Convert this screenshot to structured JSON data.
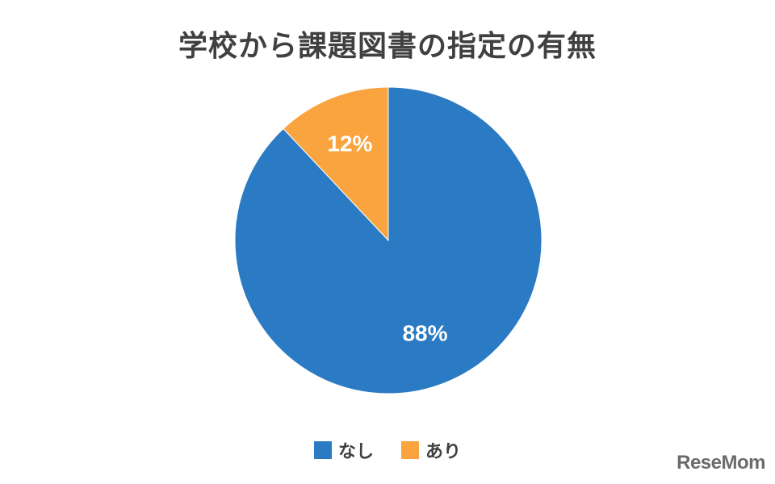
{
  "chart_data": {
    "type": "pie",
    "title": "学校から課題図書の指定の有無",
    "slices": [
      {
        "label": "なし",
        "value": 88,
        "value_label": "88%",
        "color": "#2A7BC4"
      },
      {
        "label": "あり",
        "value": 12,
        "value_label": "12%",
        "color": "#F9A43F"
      }
    ],
    "start_angle_deg": 0,
    "direction": "clockwise",
    "legend_position": "bottom"
  },
  "watermark": "ReseMom"
}
